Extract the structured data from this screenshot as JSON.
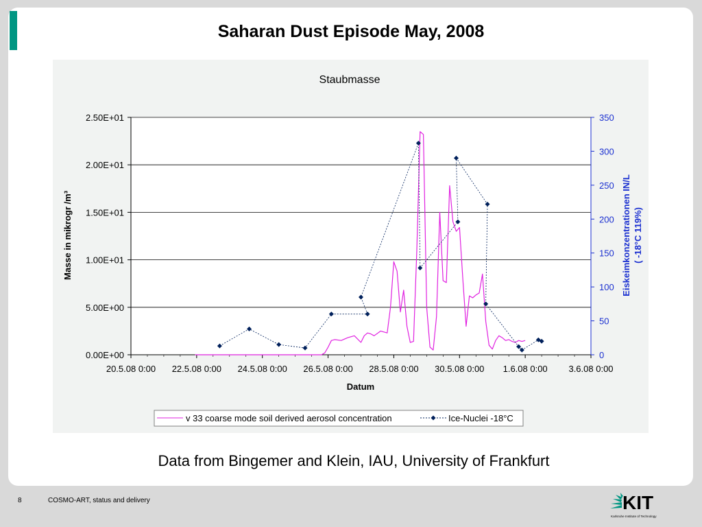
{
  "slide": {
    "title": "Saharan Dust Episode May, 2008",
    "caption": "Data from Bingemer and Klein, IAU, University of Frankfurt",
    "page_number": "8",
    "footer": "COSMO-ART, status and delivery",
    "logo": {
      "text": "KIT",
      "subtitle": "Karlsruhe Institute of Technology",
      "color": "#009682"
    }
  },
  "chart_data": {
    "type": "line",
    "title": "Staubmasse",
    "xlabel": "Datum",
    "ylabel": "Masse in mikrogr /m³",
    "y2label_line1": "Eiskeimkonzentrationen IN/L",
    "y2label_line2": "( -18°C 119%)",
    "xlim": [
      20.0,
      34.0
    ],
    "ylim": [
      0,
      25
    ],
    "y2lim": [
      0,
      350
    ],
    "x_tick_values": [
      20,
      22,
      24,
      26,
      28,
      30,
      32,
      34
    ],
    "x_tick_labels": [
      "20.5.08 0:00",
      "22.5.08 0:00",
      "24.5.08 0:00",
      "26.5.08 0:00",
      "28.5.08 0:00",
      "30.5.08 0:00",
      "1.6.08 0:00",
      "3.6.08 0:00"
    ],
    "y_tick_values": [
      0,
      5,
      10,
      15,
      20,
      25
    ],
    "y_tick_labels": [
      "0.00E+00",
      "5.00E+00",
      "1.00E+01",
      "1.50E+01",
      "2.00E+01",
      "2.50E+01"
    ],
    "y2_tick_values": [
      0,
      50,
      100,
      150,
      200,
      250,
      300,
      350
    ],
    "y2_tick_labels": [
      "0",
      "50",
      "100",
      "150",
      "200",
      "250",
      "300",
      "350"
    ],
    "grid": "horizontal",
    "legend_position": "bottom",
    "series": [
      {
        "name": "v 33 coarse mode soil derived aerosol concentration",
        "axis": "left",
        "color": "#e020e0",
        "x": [
          21.95,
          25.8,
          25.9,
          26.0,
          26.1,
          26.2,
          26.4,
          26.6,
          26.8,
          27.0,
          27.1,
          27.2,
          27.3,
          27.4,
          27.6,
          27.8,
          27.9,
          28.0,
          28.1,
          28.2,
          28.3,
          28.4,
          28.5,
          28.6,
          28.7,
          28.8,
          28.9,
          29.0,
          29.1,
          29.2,
          29.3,
          29.4,
          29.5,
          29.6,
          29.7,
          29.8,
          29.9,
          30.0,
          30.1,
          30.2,
          30.3,
          30.4,
          30.5,
          30.6,
          30.7,
          30.8,
          30.9,
          31.0,
          31.1,
          31.2,
          31.3,
          31.4,
          31.5,
          31.6,
          31.7,
          31.8,
          31.9,
          32.0
        ],
        "y": [
          0.0,
          0.0,
          0.2,
          0.8,
          1.5,
          1.6,
          1.5,
          1.8,
          2.0,
          1.3,
          2.0,
          2.3,
          2.2,
          2.0,
          2.5,
          2.3,
          5.0,
          9.8,
          8.8,
          4.5,
          6.8,
          3.0,
          1.3,
          1.4,
          11.0,
          23.5,
          23.2,
          5.0,
          0.8,
          0.5,
          4.0,
          15.0,
          7.8,
          7.6,
          17.8,
          14.0,
          13.0,
          13.4,
          8.0,
          3.0,
          6.2,
          6.0,
          6.3,
          6.5,
          8.5,
          3.5,
          1.0,
          0.6,
          1.5,
          2.0,
          1.8,
          1.5,
          1.6,
          1.4,
          1.3,
          1.5,
          1.4,
          1.5
        ]
      },
      {
        "name": "Ice-Nuclei -18°C",
        "axis": "right",
        "color": "#00205b",
        "x": [
          22.7,
          23.6,
          24.5,
          25.3,
          26.1,
          27.2,
          27.0,
          28.75,
          28.8,
          29.9,
          29.95,
          30.85,
          30.8,
          31.8,
          31.9,
          32.4,
          32.5
        ],
        "y": [
          13,
          38,
          15,
          10,
          60,
          60,
          85,
          312,
          128,
          290,
          196,
          222,
          75,
          12,
          7,
          22,
          20
        ],
        "path_order": [
          0,
          1,
          2,
          3,
          4,
          5,
          6,
          7,
          8,
          10,
          9,
          11,
          12,
          13,
          14,
          15,
          16
        ]
      }
    ]
  }
}
